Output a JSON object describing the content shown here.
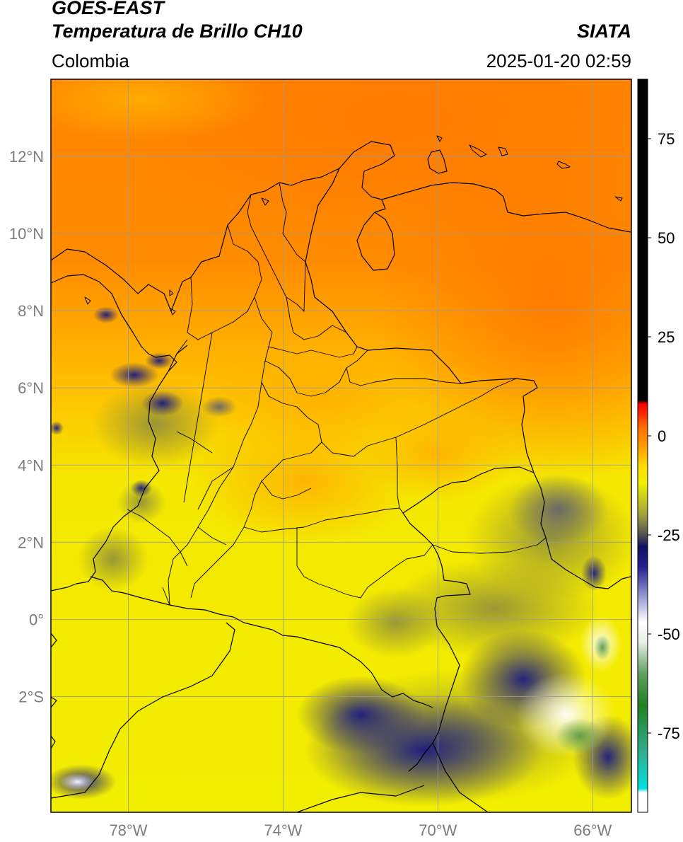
{
  "header": {
    "satellite": "GOES-EAST",
    "product": "Temperatura de Brillo CH10",
    "region": "Colombia",
    "agency": "SIATA",
    "timestamp": "2025-01-20 02:59"
  },
  "map": {
    "lon_range": [
      -80.0,
      -65.0
    ],
    "lat_range": [
      -5.0,
      14.0
    ],
    "lat_ticks": [
      {
        "value": 12,
        "label": "12°N"
      },
      {
        "value": 10,
        "label": "10°N"
      },
      {
        "value": 8,
        "label": "8°N"
      },
      {
        "value": 6,
        "label": "6°N"
      },
      {
        "value": 4,
        "label": "4°N"
      },
      {
        "value": 2,
        "label": "2°N"
      },
      {
        "value": 0,
        "label": "0°"
      },
      {
        "value": -2,
        "label": "2°S"
      }
    ],
    "lon_ticks": [
      {
        "value": -78,
        "label": "78°W"
      },
      {
        "value": -74,
        "label": "74°W"
      },
      {
        "value": -70,
        "label": "70°W"
      },
      {
        "value": -66,
        "label": "66°W"
      }
    ],
    "gridlines": true,
    "gridline_color": "#9a9a9a",
    "tick_label_color": "#7d7d7d"
  },
  "colorbar": {
    "range": [
      -95,
      90
    ],
    "ticks": [
      {
        "value": 75,
        "label": "75"
      },
      {
        "value": 50,
        "label": "50"
      },
      {
        "value": 25,
        "label": "25"
      },
      {
        "value": 0,
        "label": "0"
      },
      {
        "value": -25,
        "label": "-25"
      },
      {
        "value": -50,
        "label": "-50"
      },
      {
        "value": -75,
        "label": "-75"
      }
    ],
    "stops": [
      {
        "value": -95,
        "color": "#ffffff"
      },
      {
        "value": -90,
        "color": "#ffffff"
      },
      {
        "value": -89,
        "color": "#00e0e0"
      },
      {
        "value": -80,
        "color": "#30b090"
      },
      {
        "value": -68,
        "color": "#208020"
      },
      {
        "value": -60,
        "color": "#60a060"
      },
      {
        "value": -52,
        "color": "#e8f0e8"
      },
      {
        "value": -47,
        "color": "#ffffff"
      },
      {
        "value": -40,
        "color": "#9090d0"
      },
      {
        "value": -33,
        "color": "#202090"
      },
      {
        "value": -28,
        "color": "#101060"
      },
      {
        "value": -25,
        "color": "#505050"
      },
      {
        "value": -20,
        "color": "#a0a040"
      },
      {
        "value": -12,
        "color": "#f0f000"
      },
      {
        "value": -8,
        "color": "#ffe000"
      },
      {
        "value": -3,
        "color": "#ffa000"
      },
      {
        "value": 2,
        "color": "#ff7000"
      },
      {
        "value": 6,
        "color": "#ff2000"
      },
      {
        "value": 8,
        "color": "#ff0000"
      },
      {
        "value": 9,
        "color": "#000000"
      },
      {
        "value": 90,
        "color": "#000000"
      }
    ]
  }
}
